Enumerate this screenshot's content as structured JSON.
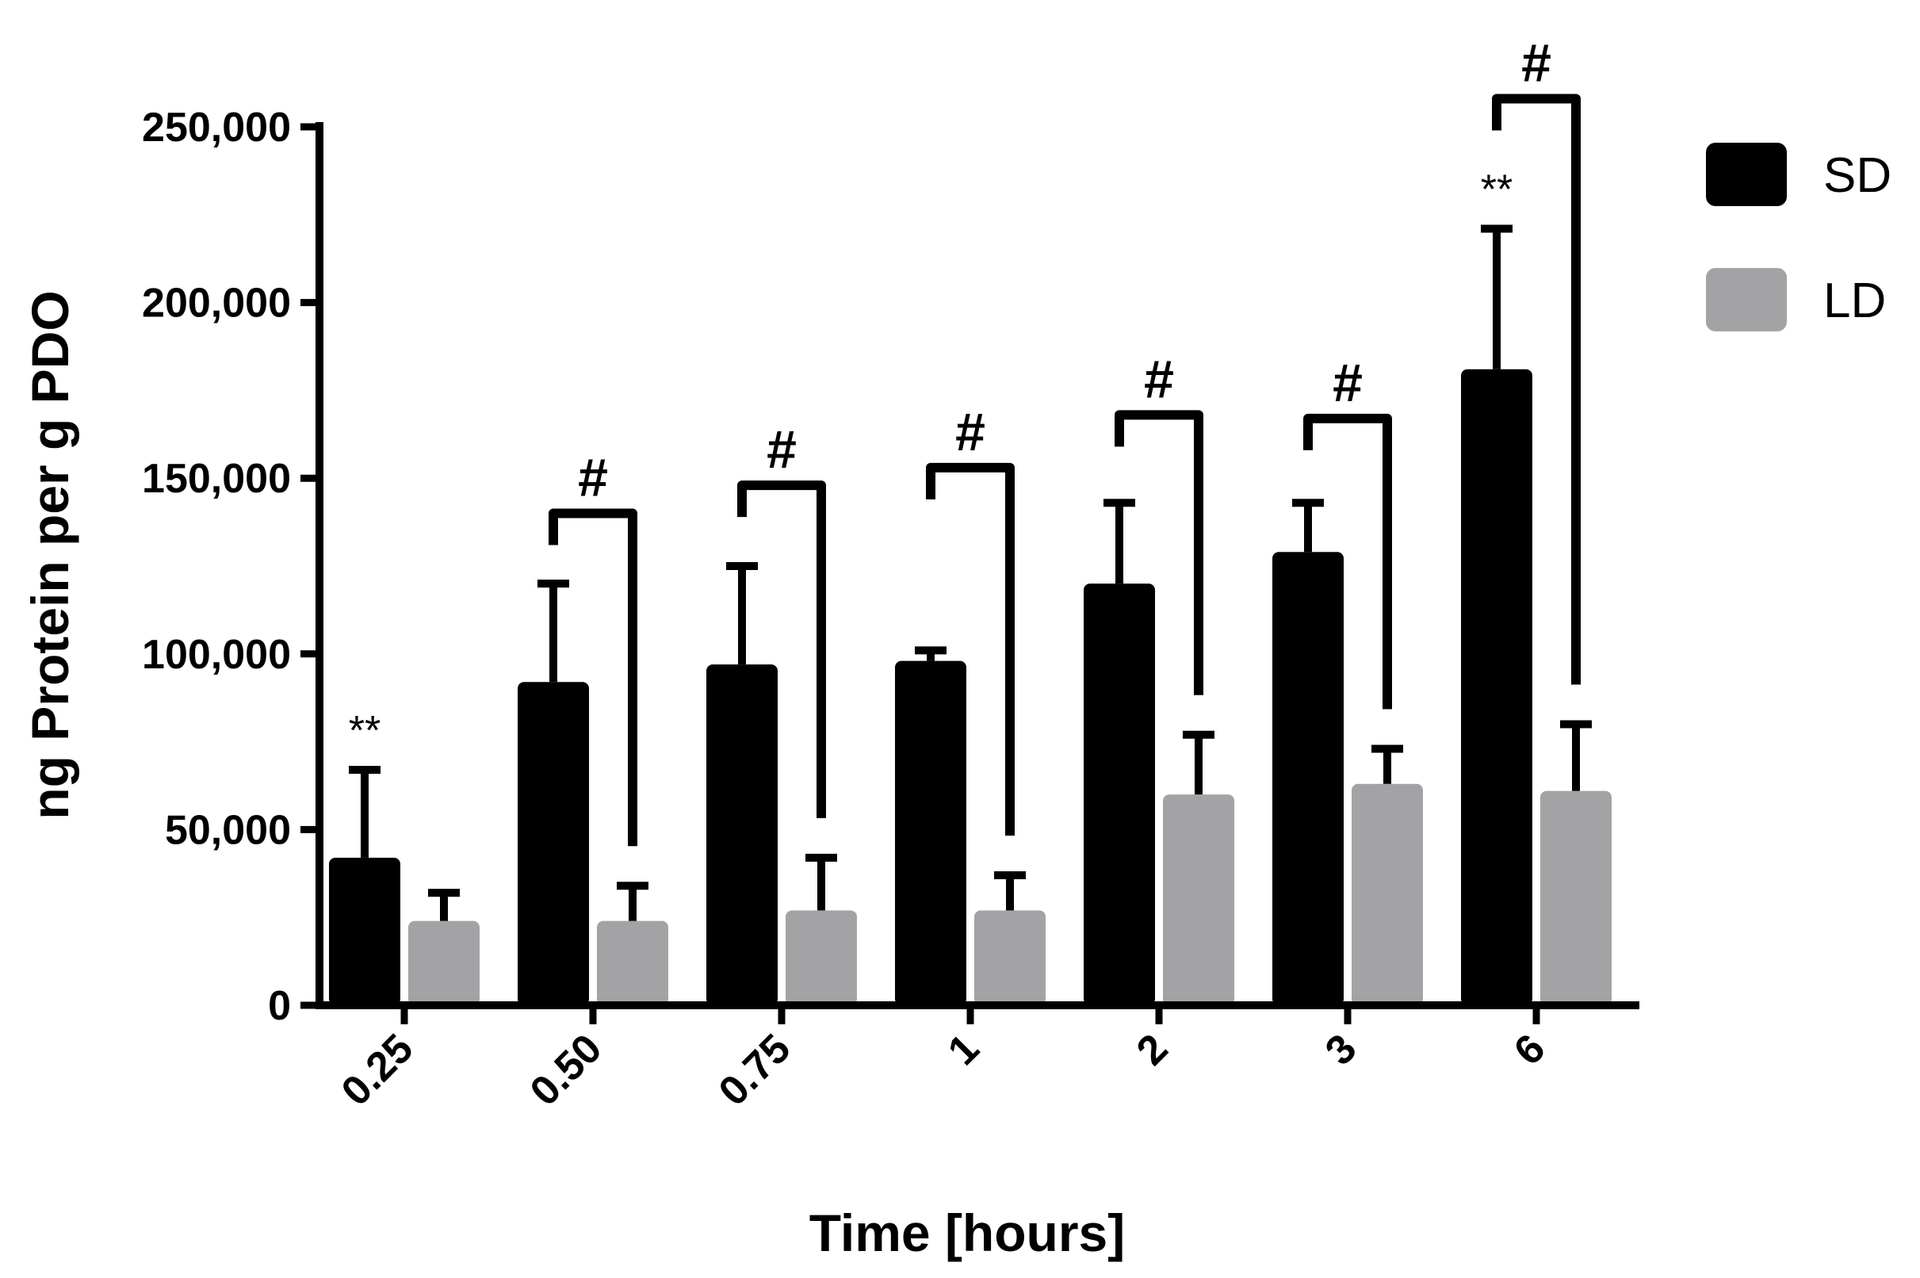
{
  "chart_data": {
    "type": "bar",
    "categories": [
      "0.25",
      "0.50",
      "0.75",
      "1",
      "2",
      "3",
      "6"
    ],
    "series": [
      {
        "name": "SD",
        "color": "#000000",
        "values": [
          42000,
          92000,
          97000,
          98000,
          120000,
          129000,
          181000
        ],
        "errors": [
          25000,
          28000,
          28000,
          3000,
          23000,
          14000,
          40000
        ]
      },
      {
        "name": "LD",
        "color": "#a3a3a6",
        "values": [
          24000,
          24000,
          27000,
          27000,
          60000,
          63000,
          61000
        ],
        "errors": [
          8000,
          10000,
          15000,
          10000,
          17000,
          10000,
          19000
        ]
      }
    ],
    "xlabel": "Time [hours]",
    "ylabel": "ng Protein per g PDO",
    "ylim": [
      0,
      250000
    ],
    "yticks": [
      "0",
      "50,000",
      "100,000",
      "150,000",
      "200,000",
      "250,000"
    ],
    "ytick_values": [
      0,
      50000,
      100000,
      150000,
      200000,
      250000
    ],
    "legend_position": "top-right",
    "grid": false,
    "annotations": {
      "brackets": [
        {
          "category": "0.50",
          "label": "#",
          "y": 140000
        },
        {
          "category": "0.75",
          "label": "#",
          "y": 148000
        },
        {
          "category": "1",
          "label": "#",
          "y": 153000
        },
        {
          "category": "2",
          "label": "#",
          "y": 168000
        },
        {
          "category": "3",
          "label": "#",
          "y": 167000
        },
        {
          "category": "6",
          "label": "#",
          "y": 258000
        }
      ],
      "stars": [
        {
          "category": "0.25",
          "label": "**"
        },
        {
          "category": "6",
          "label": "**"
        }
      ]
    }
  }
}
